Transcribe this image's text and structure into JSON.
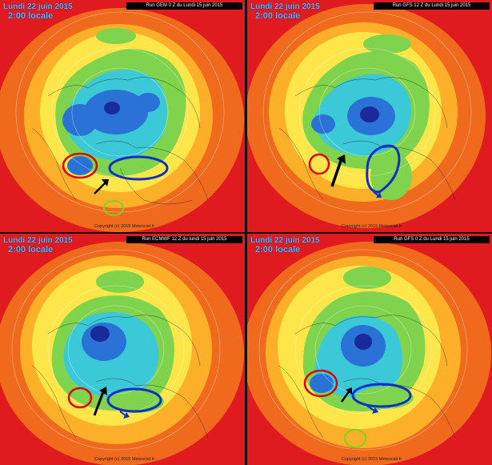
{
  "panels": [
    {
      "date": "Lundi 22 juin 2015",
      "time": "2:00 locale",
      "run": "Run GEM 0 Z du Lundi 15 juin 2015",
      "copyright": "Copyright (c) 2015 Meteociel.fr"
    },
    {
      "date": "Lundi 22 juin 2015",
      "time": "2:00 locale",
      "run": "Run GFS 12 Z du Lundi 15 juin 2015",
      "copyright": "Copyright (c) 2015 Meteociel.fr"
    },
    {
      "date": "Lundi 22 juin 2015",
      "time": "2:00 locale",
      "run": "Run ECMWF 12 Z du lundi 15 juin 2015",
      "copyright": "Copyright (c) 2015 Meteociel.fr"
    },
    {
      "date": "Lundi 22 juin 2015",
      "time": "2:00 locale",
      "run": "Run GFS 0 Z du Lundi 15 juin 2015",
      "copyright": "Copyright (c) 2015 Meteociel.fr"
    }
  ],
  "colors": {
    "background": "#e01b1f",
    "orange": "#f06a1e",
    "amber": "#fcb02a",
    "yellow": "#fde64a",
    "green": "#7fd34d",
    "cyan": "#3cc9d7",
    "blue": "#2a72d6",
    "navy": "#1a2a9a",
    "circle_red": "#e00000",
    "circle_blue": "#1030c0",
    "circle_green": "#80d020",
    "arrow": "#000000",
    "title_text": "#5ab2ff"
  },
  "icons": [
    "arrow-icon"
  ]
}
